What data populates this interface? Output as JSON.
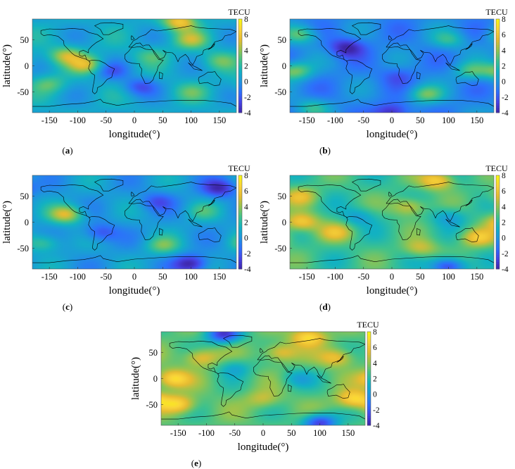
{
  "figure": {
    "colorbar": {
      "title": "TECU",
      "range": [
        -4,
        8
      ],
      "ticks": [
        8,
        6,
        4,
        2,
        0,
        -2,
        -4
      ],
      "colormap": "parula",
      "colors": [
        "#3e26a8",
        "#4743e6",
        "#2d70fc",
        "#1e95de",
        "#12b2c2",
        "#3fc28c",
        "#93c450",
        "#e6bb31",
        "#fad43a",
        "#f8fa0d"
      ]
    }
  },
  "chart_data": [
    {
      "type": "heatmap",
      "panel": "(a)",
      "caption_letter": "a",
      "xlabel": "longitude(°)",
      "ylabel": "latitude(°)",
      "xlim": [
        -180,
        180
      ],
      "ylim": [
        -90,
        90
      ],
      "xticks": [
        -150,
        -100,
        -50,
        0,
        50,
        100,
        150
      ],
      "yticks": [
        50,
        0,
        -50
      ],
      "colorbar_title": "TECU",
      "clim": [
        -4,
        8
      ],
      "base": 0.8,
      "blobs": [
        {
          "lon": -120,
          "lat": 20,
          "value": 4.5
        },
        {
          "lon": -85,
          "lat": 2,
          "value": 4.5
        },
        {
          "lon": 100,
          "lat": 50,
          "value": 4.0
        },
        {
          "lon": 30,
          "lat": 20,
          "value": 2.5
        },
        {
          "lon": 150,
          "lat": 10,
          "value": 3.0
        },
        {
          "lon": -150,
          "lat": -35,
          "value": 3.0
        },
        {
          "lon": -40,
          "lat": -10,
          "value": -1.5
        },
        {
          "lon": 10,
          "lat": -40,
          "value": -2.0
        },
        {
          "lon": 100,
          "lat": -50,
          "value": 2.5
        },
        {
          "lon": 80,
          "lat": 85,
          "value": 6.0
        }
      ]
    },
    {
      "type": "heatmap",
      "panel": "(b)",
      "caption_letter": "b",
      "xlabel": "longitude(°)",
      "ylabel": "latitude(°)",
      "xlim": [
        -180,
        180
      ],
      "ylim": [
        -90,
        90
      ],
      "xticks": [
        -150,
        -100,
        -50,
        0,
        50,
        100,
        150
      ],
      "yticks": [
        50,
        0,
        -50
      ],
      "colorbar_title": "TECU",
      "clim": [
        -4,
        8
      ],
      "base": -0.5,
      "blobs": [
        {
          "lon": -160,
          "lat": 60,
          "value": 3.0
        },
        {
          "lon": -170,
          "lat": -10,
          "value": 3.5
        },
        {
          "lon": -80,
          "lat": 35,
          "value": -4.0
        },
        {
          "lon": 10,
          "lat": -20,
          "value": -2.0
        },
        {
          "lon": 60,
          "lat": -55,
          "value": 3.0
        },
        {
          "lon": 100,
          "lat": 50,
          "value": 2.0
        },
        {
          "lon": 140,
          "lat": -10,
          "value": 2.5
        },
        {
          "lon": 0,
          "lat": -90,
          "value": -4.0
        },
        {
          "lon": -140,
          "lat": -80,
          "value": 2.0
        }
      ]
    },
    {
      "type": "heatmap",
      "panel": "(c)",
      "caption_letter": "c",
      "xlabel": "longitude(°)",
      "ylabel": "latitude(°)",
      "xlim": [
        -180,
        180
      ],
      "ylim": [
        -90,
        90
      ],
      "xticks": [
        -150,
        -100,
        -50,
        0,
        50,
        100,
        150
      ],
      "yticks": [
        50,
        0,
        -50
      ],
      "colorbar_title": "TECU",
      "clim": [
        -4,
        8
      ],
      "base": 0.3,
      "blobs": [
        {
          "lon": -120,
          "lat": 15,
          "value": 5.0
        },
        {
          "lon": -60,
          "lat": -20,
          "value": -2.5
        },
        {
          "lon": 40,
          "lat": 40,
          "value": -2.0
        },
        {
          "lon": 150,
          "lat": 65,
          "value": -3.5
        },
        {
          "lon": 100,
          "lat": -80,
          "value": -4.0
        },
        {
          "lon": 50,
          "lat": -45,
          "value": 3.0
        },
        {
          "lon": -160,
          "lat": -40,
          "value": 3.0
        },
        {
          "lon": 120,
          "lat": 20,
          "value": 2.0
        }
      ]
    },
    {
      "type": "heatmap",
      "panel": "(d)",
      "caption_letter": "d",
      "xlabel": "longitude(°)",
      "ylabel": "latitude(°)",
      "xlim": [
        -180,
        180
      ],
      "ylim": [
        -90,
        90
      ],
      "xticks": [
        -150,
        -100,
        -50,
        0,
        50,
        100,
        150
      ],
      "yticks": [
        50,
        0,
        -50
      ],
      "colorbar_title": "TECU",
      "clim": [
        -4,
        8
      ],
      "base": 2.5,
      "blobs": [
        {
          "lon": -160,
          "lat": 0,
          "value": 6.5
        },
        {
          "lon": -160,
          "lat": 50,
          "value": 5.0
        },
        {
          "lon": -100,
          "lat": -20,
          "value": 5.0
        },
        {
          "lon": 30,
          "lat": 30,
          "value": 5.5
        },
        {
          "lon": 80,
          "lat": 80,
          "value": 6.5
        },
        {
          "lon": 150,
          "lat": -30,
          "value": 6.0
        },
        {
          "lon": 50,
          "lat": -50,
          "value": 5.0
        },
        {
          "lon": -60,
          "lat": 10,
          "value": 0.5
        },
        {
          "lon": 100,
          "lat": 10,
          "value": 0.5
        },
        {
          "lon": 100,
          "lat": -85,
          "value": -3.0
        }
      ]
    },
    {
      "type": "heatmap",
      "panel": "(e)",
      "caption_letter": "e",
      "xlabel": "longitude(°)",
      "ylabel": "latitude(°)",
      "xlim": [
        -180,
        180
      ],
      "ylim": [
        -90,
        90
      ],
      "xticks": [
        -150,
        -100,
        -50,
        0,
        50,
        100,
        150
      ],
      "yticks": [
        50,
        0,
        -50
      ],
      "colorbar_title": "TECU",
      "clim": [
        -4,
        8
      ],
      "base": 3.0,
      "blobs": [
        {
          "lon": -160,
          "lat": 0,
          "value": 7.0
        },
        {
          "lon": -150,
          "lat": -50,
          "value": 7.0
        },
        {
          "lon": -110,
          "lat": 40,
          "value": 6.0
        },
        {
          "lon": 30,
          "lat": 50,
          "value": 6.0
        },
        {
          "lon": 80,
          "lat": 80,
          "value": 7.0
        },
        {
          "lon": 160,
          "lat": -40,
          "value": 7.0
        },
        {
          "lon": 130,
          "lat": 40,
          "value": 6.0
        },
        {
          "lon": 0,
          "lat": -40,
          "value": 5.0
        },
        {
          "lon": 60,
          "lat": 0,
          "value": 1.0
        },
        {
          "lon": -50,
          "lat": 20,
          "value": 1.0
        },
        {
          "lon": 100,
          "lat": -85,
          "value": -3.0
        },
        {
          "lon": -70,
          "lat": 85,
          "value": -3.0
        }
      ]
    }
  ]
}
